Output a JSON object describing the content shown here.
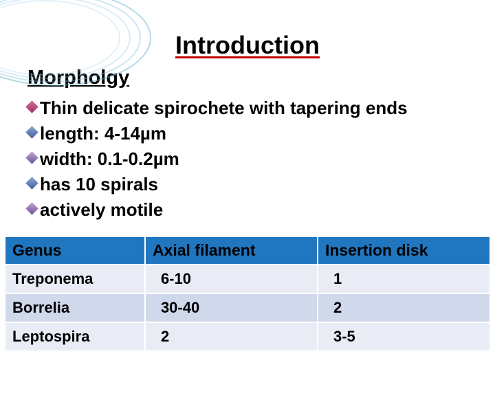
{
  "title": "Introduction",
  "subtitle": "Morpholgy",
  "bullets": [
    "Thin delicate spirochete with tapering ends",
    " length: 4-14µm",
    " width: 0.1-0.2µm",
    " has 10 spirals",
    " actively motile"
  ],
  "table": {
    "headers": [
      "Genus",
      "Axial filament",
      "Insertion disk"
    ],
    "rows": [
      [
        "Treponema",
        "6-10",
        "1"
      ],
      [
        "Borrelia",
        "30-40",
        "2"
      ],
      [
        "Leptospira",
        "2",
        "3-5"
      ]
    ],
    "header_bg": "#2176c0",
    "row_light_bg": "#e9ecf5",
    "row_lighter_bg": "#d0d8eb"
  },
  "colors": {
    "underline_red": "#c00000",
    "text": "#000000"
  }
}
